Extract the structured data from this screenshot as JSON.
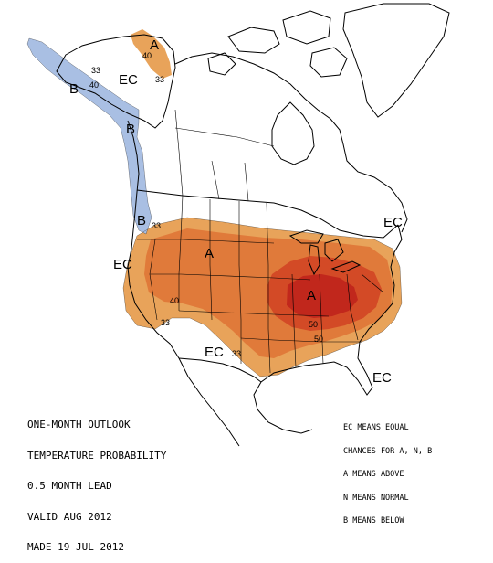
{
  "title_block": [
    "ONE-MONTH OUTLOOK",
    "TEMPERATURE PROBABILITY",
    "0.5 MONTH LEAD",
    "VALID AUG 2012",
    "MADE 19 JUL 2012"
  ],
  "legend_block": [
    "EC MEANS EQUAL",
    "CHANCES FOR A, N, B",
    "A MEANS ABOVE",
    "N MEANS NORMAL",
    "B MEANS BELOW"
  ],
  "map_labels": {
    "ec_west_alaska": "EC",
    "ec_pacific": "EC",
    "ec_southwest": "EC",
    "ec_northeast": "EC",
    "ec_florida": "EC",
    "a_north_alaska": "A",
    "a_plains": "A",
    "a_midwest": "A",
    "b_alaska": "B",
    "b_panhandle": "B",
    "b_washington": "B",
    "c33_alaska_west": "33",
    "c40_alaska_west": "40",
    "c40_north_alaska": "40",
    "c33_north_alaska": "33",
    "c33_pacific": "33",
    "c40_california": "40",
    "c33_nevada": "33",
    "c33_southwest": "33",
    "c50_midwest": "50",
    "c50_south": "50"
  },
  "colors": {
    "above_33": "#e8a35a",
    "above_40": "#e07a3a",
    "above_50": "#d34a26",
    "above_60": "#c1271c",
    "below_33": "#a9bfe3",
    "outline": "#000000"
  }
}
